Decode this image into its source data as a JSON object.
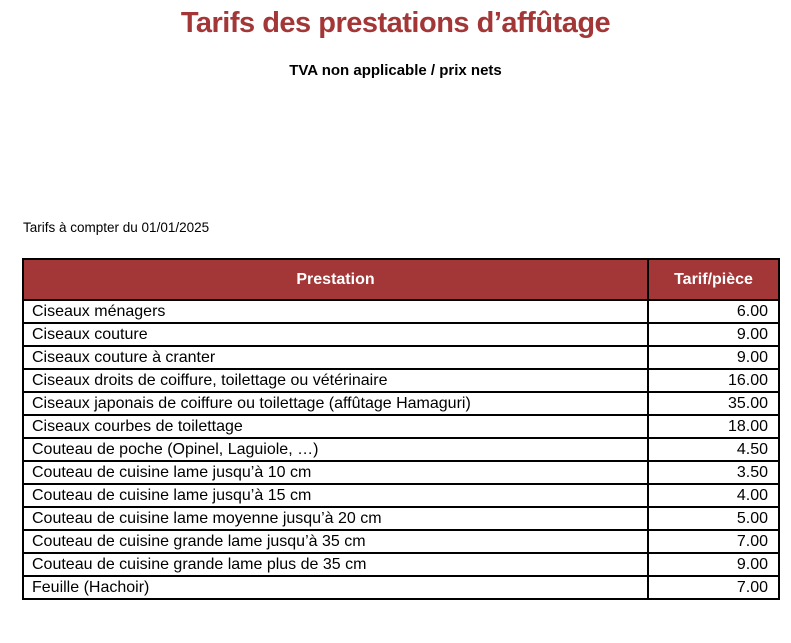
{
  "page": {
    "title": "Tarifs des prestations d’affûtage",
    "subtitle": "TVA non applicable / prix nets",
    "effective_note": "Tarifs à compter du 01/01/2025"
  },
  "table": {
    "headers": [
      "Prestation",
      "Tarif/pièce"
    ],
    "rows": [
      {
        "prestation": "Ciseaux ménagers",
        "tarif": "6.00"
      },
      {
        "prestation": "Ciseaux couture",
        "tarif": "9.00"
      },
      {
        "prestation": "Ciseaux couture à cranter",
        "tarif": "9.00"
      },
      {
        "prestation": "Ciseaux droits de coiffure, toilettage ou vétérinaire",
        "tarif": "16.00"
      },
      {
        "prestation": "Ciseaux japonais de coiffure ou toilettage (affûtage Hamaguri)",
        "tarif": "35.00"
      },
      {
        "prestation": "Ciseaux courbes de toilettage",
        "tarif": "18.00"
      },
      {
        "prestation": "Couteau de poche (Opinel, Laguiole, …)",
        "tarif": "4.50"
      },
      {
        "prestation": "Couteau de cuisine lame jusqu’à 10 cm",
        "tarif": "3.50"
      },
      {
        "prestation": "Couteau de cuisine lame jusqu’à 15 cm",
        "tarif": "4.00"
      },
      {
        "prestation": "Couteau de cuisine lame moyenne jusqu’à 20 cm",
        "tarif": "5.00"
      },
      {
        "prestation": "Couteau de cuisine grande lame jusqu’à 35 cm",
        "tarif": "7.00"
      },
      {
        "prestation": "Couteau de cuisine grande lame plus de 35 cm",
        "tarif": "9.00"
      },
      {
        "prestation": "Feuille (Hachoir)",
        "tarif": "7.00"
      }
    ]
  },
  "colors": {
    "accent_red": "#A33636",
    "header_text": "#FFFFFF",
    "border": "#000000"
  }
}
